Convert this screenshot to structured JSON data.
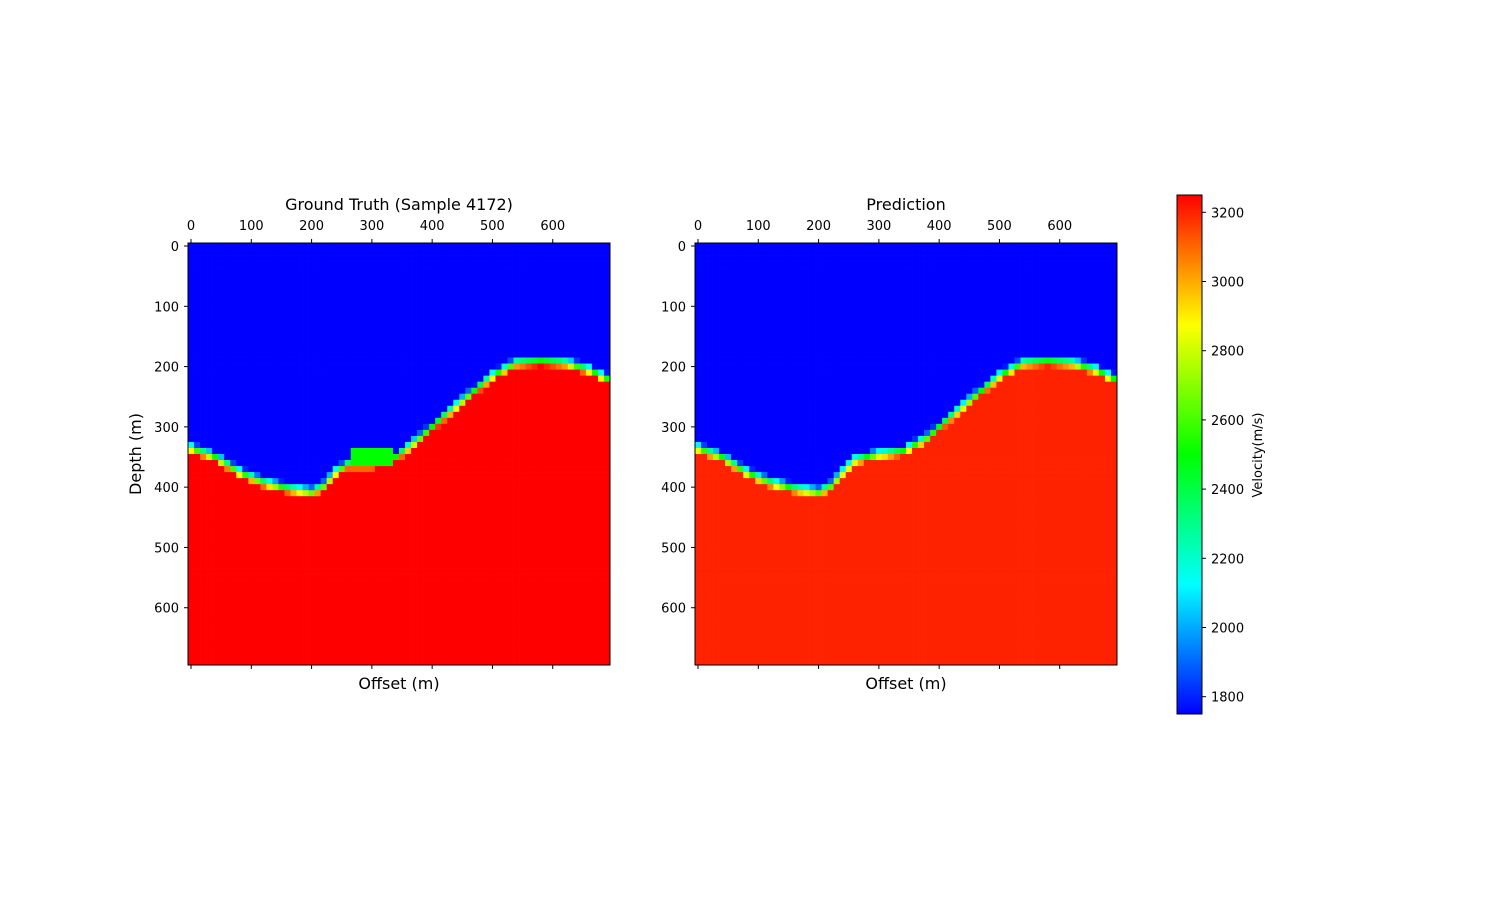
{
  "chart_data": [
    {
      "type": "heatmap",
      "title": "Ground Truth (Sample 4172)",
      "xlabel": "Offset (m)",
      "ylabel": "Depth (m)",
      "xlim": [
        -5,
        695
      ],
      "ylim": [
        695,
        -5
      ],
      "x_axis_position": "top",
      "x_ticks": [
        0,
        100,
        200,
        300,
        400,
        500,
        600
      ],
      "y_ticks": [
        0,
        100,
        200,
        300,
        400,
        500,
        600
      ],
      "grid": false,
      "colormap": "hsv-like (blue → cyan → green → yellow → red)",
      "water_velocity_m_s": 1750,
      "rock_velocity_m_s": 3250,
      "interface_depth_profile": {
        "offset_m": [
          0,
          40,
          80,
          120,
          160,
          200,
          220,
          240,
          260,
          300,
          340,
          380,
          420,
          460,
          500,
          540,
          580,
          620,
          660,
          695
        ],
        "depth_m": [
          335,
          350,
          375,
          392,
          402,
          408,
          398,
          375,
          362,
          362,
          350,
          318,
          282,
          248,
          215,
          193,
          190,
          193,
          205,
          222
        ]
      },
      "anomalies": [
        {
          "description": "green low-velocity lens",
          "offset_m": [
            270,
            330
          ],
          "depth_m": [
            335,
            365
          ],
          "velocity_m_s": 2500
        }
      ]
    },
    {
      "type": "heatmap",
      "title": "Prediction",
      "xlabel": "Offset (m)",
      "xlim": [
        -5,
        695
      ],
      "ylim": [
        695,
        -5
      ],
      "x_axis_position": "top",
      "x_ticks": [
        0,
        100,
        200,
        300,
        400,
        500,
        600
      ],
      "y_ticks": [
        0,
        100,
        200,
        300,
        400,
        500,
        600
      ],
      "grid": false,
      "water_velocity_m_s": 1750,
      "rock_velocity_m_s": 3200,
      "interface_depth_profile": {
        "offset_m": [
          0,
          40,
          80,
          120,
          160,
          200,
          220,
          240,
          260,
          300,
          340,
          380,
          420,
          460,
          500,
          540,
          580,
          620,
          660,
          695
        ],
        "depth_m": [
          335,
          350,
          375,
          392,
          402,
          408,
          398,
          375,
          355,
          345,
          340,
          318,
          282,
          248,
          215,
          193,
          190,
          193,
          205,
          222
        ]
      }
    }
  ],
  "colorbar": {
    "label": "Velocity(m/s)",
    "vmin": 1750,
    "vmax": 3250,
    "ticks": [
      1800,
      2000,
      2200,
      2400,
      2600,
      2800,
      3000,
      3200
    ],
    "colors": [
      "#0000ff",
      "#0080ff",
      "#00ffff",
      "#00ff80",
      "#00ff00",
      "#80ff00",
      "#ffff00",
      "#ff8000",
      "#ff0000"
    ]
  }
}
